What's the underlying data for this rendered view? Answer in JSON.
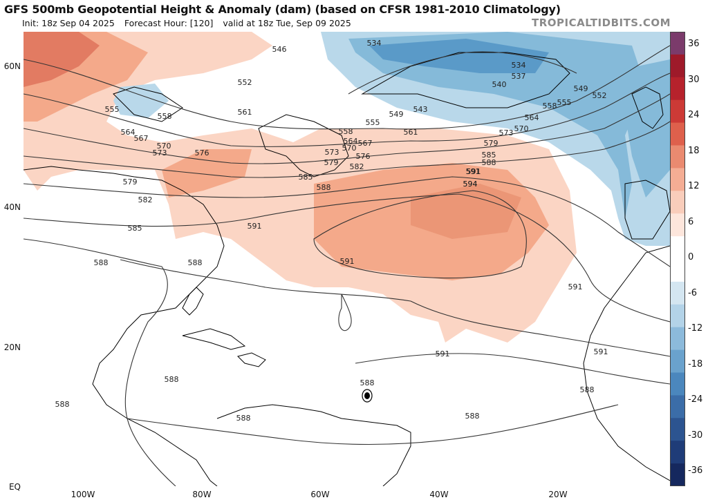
{
  "header": {
    "title": "GFS 500mb Geopotential Height & Anomaly (dam) (based on CFSR 1981-2010 Climatology)",
    "init": "Init: 18z Sep 04 2025",
    "forecast_hour": "Forecast Hour: [120]",
    "valid": "valid at 18z Tue, Sep 09 2025",
    "watermark": "TROPICALTIDBITS.COM"
  },
  "map": {
    "lat_labels": [
      "60N",
      "40N",
      "20N",
      "EQ"
    ],
    "lon_labels": [
      "100W",
      "80W",
      "60W",
      "40W",
      "20W"
    ],
    "contour_labels": [
      "546",
      "534",
      "534",
      "537",
      "540",
      "549",
      "552",
      "555",
      "558",
      "564",
      "570",
      "573",
      "579",
      "585",
      "588",
      "591",
      "594",
      "552",
      "555",
      "558",
      "561",
      "564",
      "567",
      "570",
      "573",
      "576",
      "579",
      "582",
      "585",
      "588",
      "549",
      "543",
      "555",
      "561",
      "558",
      "564",
      "567",
      "570",
      "573",
      "576",
      "579",
      "582",
      "585",
      "588",
      "591",
      "594",
      "591",
      "591",
      "588",
      "588",
      "588",
      "588",
      "588",
      "588",
      "588",
      "591",
      "591",
      "591"
    ],
    "colors": {
      "ocean": "#ffffff",
      "land_line": "#000000",
      "contour": "#333333",
      "pos_light": "#fbd5c4",
      "pos_mid": "#f4a98a",
      "pos_strong": "#e27b62",
      "neg_light": "#b9d8ea",
      "neg_mid": "#85bad9",
      "neg_strong": "#5a9ac8"
    }
  },
  "colorbar": {
    "labels": [
      "36",
      "30",
      "24",
      "18",
      "12",
      "6",
      "0",
      "-6",
      "-12",
      "-18",
      "-24",
      "-30",
      "-36"
    ],
    "colors": [
      "#7b3b6b",
      "#9e1a2a",
      "#b6222c",
      "#cc3a36",
      "#de604c",
      "#ea8a70",
      "#f4ad94",
      "#f9cdbb",
      "#fde6dc",
      "#ffffff",
      "#ffffff",
      "#d4e6f1",
      "#b3d3e8",
      "#8cbadb",
      "#6aa2cd",
      "#4b87bd",
      "#3b6da8",
      "#2c5490",
      "#1f3c78",
      "#15285e"
    ]
  }
}
